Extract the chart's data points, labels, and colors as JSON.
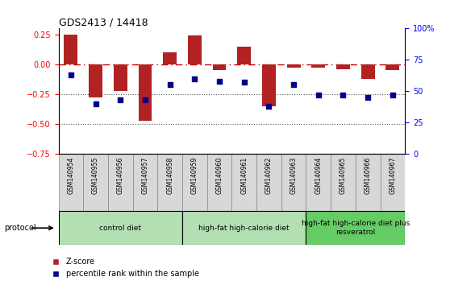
{
  "title": "GDS2413 / 14418",
  "samples": [
    "GSM140954",
    "GSM140955",
    "GSM140956",
    "GSM140957",
    "GSM140958",
    "GSM140959",
    "GSM140960",
    "GSM140961",
    "GSM140962",
    "GSM140963",
    "GSM140964",
    "GSM140965",
    "GSM140966",
    "GSM140967"
  ],
  "zscore": [
    0.25,
    -0.28,
    -0.22,
    -0.47,
    0.1,
    0.24,
    -0.05,
    0.15,
    -0.35,
    -0.03,
    -0.03,
    -0.04,
    -0.12,
    -0.05
  ],
  "percentile_right": [
    63,
    40,
    43,
    43,
    55,
    60,
    58,
    57,
    38,
    55,
    47,
    47,
    45,
    47
  ],
  "bar_color": "#b22222",
  "dot_color": "#00008b",
  "hline_color": "#cc0000",
  "dotted_color": "#555555",
  "ylim_left": [
    -0.75,
    0.3
  ],
  "ylim_right": [
    0,
    100
  ],
  "yticks_left": [
    0.25,
    0.0,
    -0.25,
    -0.5,
    -0.75
  ],
  "yticks_right": [
    100,
    75,
    50,
    25,
    0
  ],
  "groups": [
    {
      "label": "control diet",
      "start": 0,
      "end": 4,
      "color": "#b2e0b2"
    },
    {
      "label": "high-fat high-calorie diet",
      "start": 5,
      "end": 9,
      "color": "#b2e0b2"
    },
    {
      "label": "high-fat high-calorie diet plus\nresveratrol",
      "start": 10,
      "end": 13,
      "color": "#66cc66"
    }
  ],
  "protocol_label": "protocol",
  "legend_zscore": "Z-score",
  "legend_percentile": "percentile rank within the sample",
  "bar_width": 0.55
}
